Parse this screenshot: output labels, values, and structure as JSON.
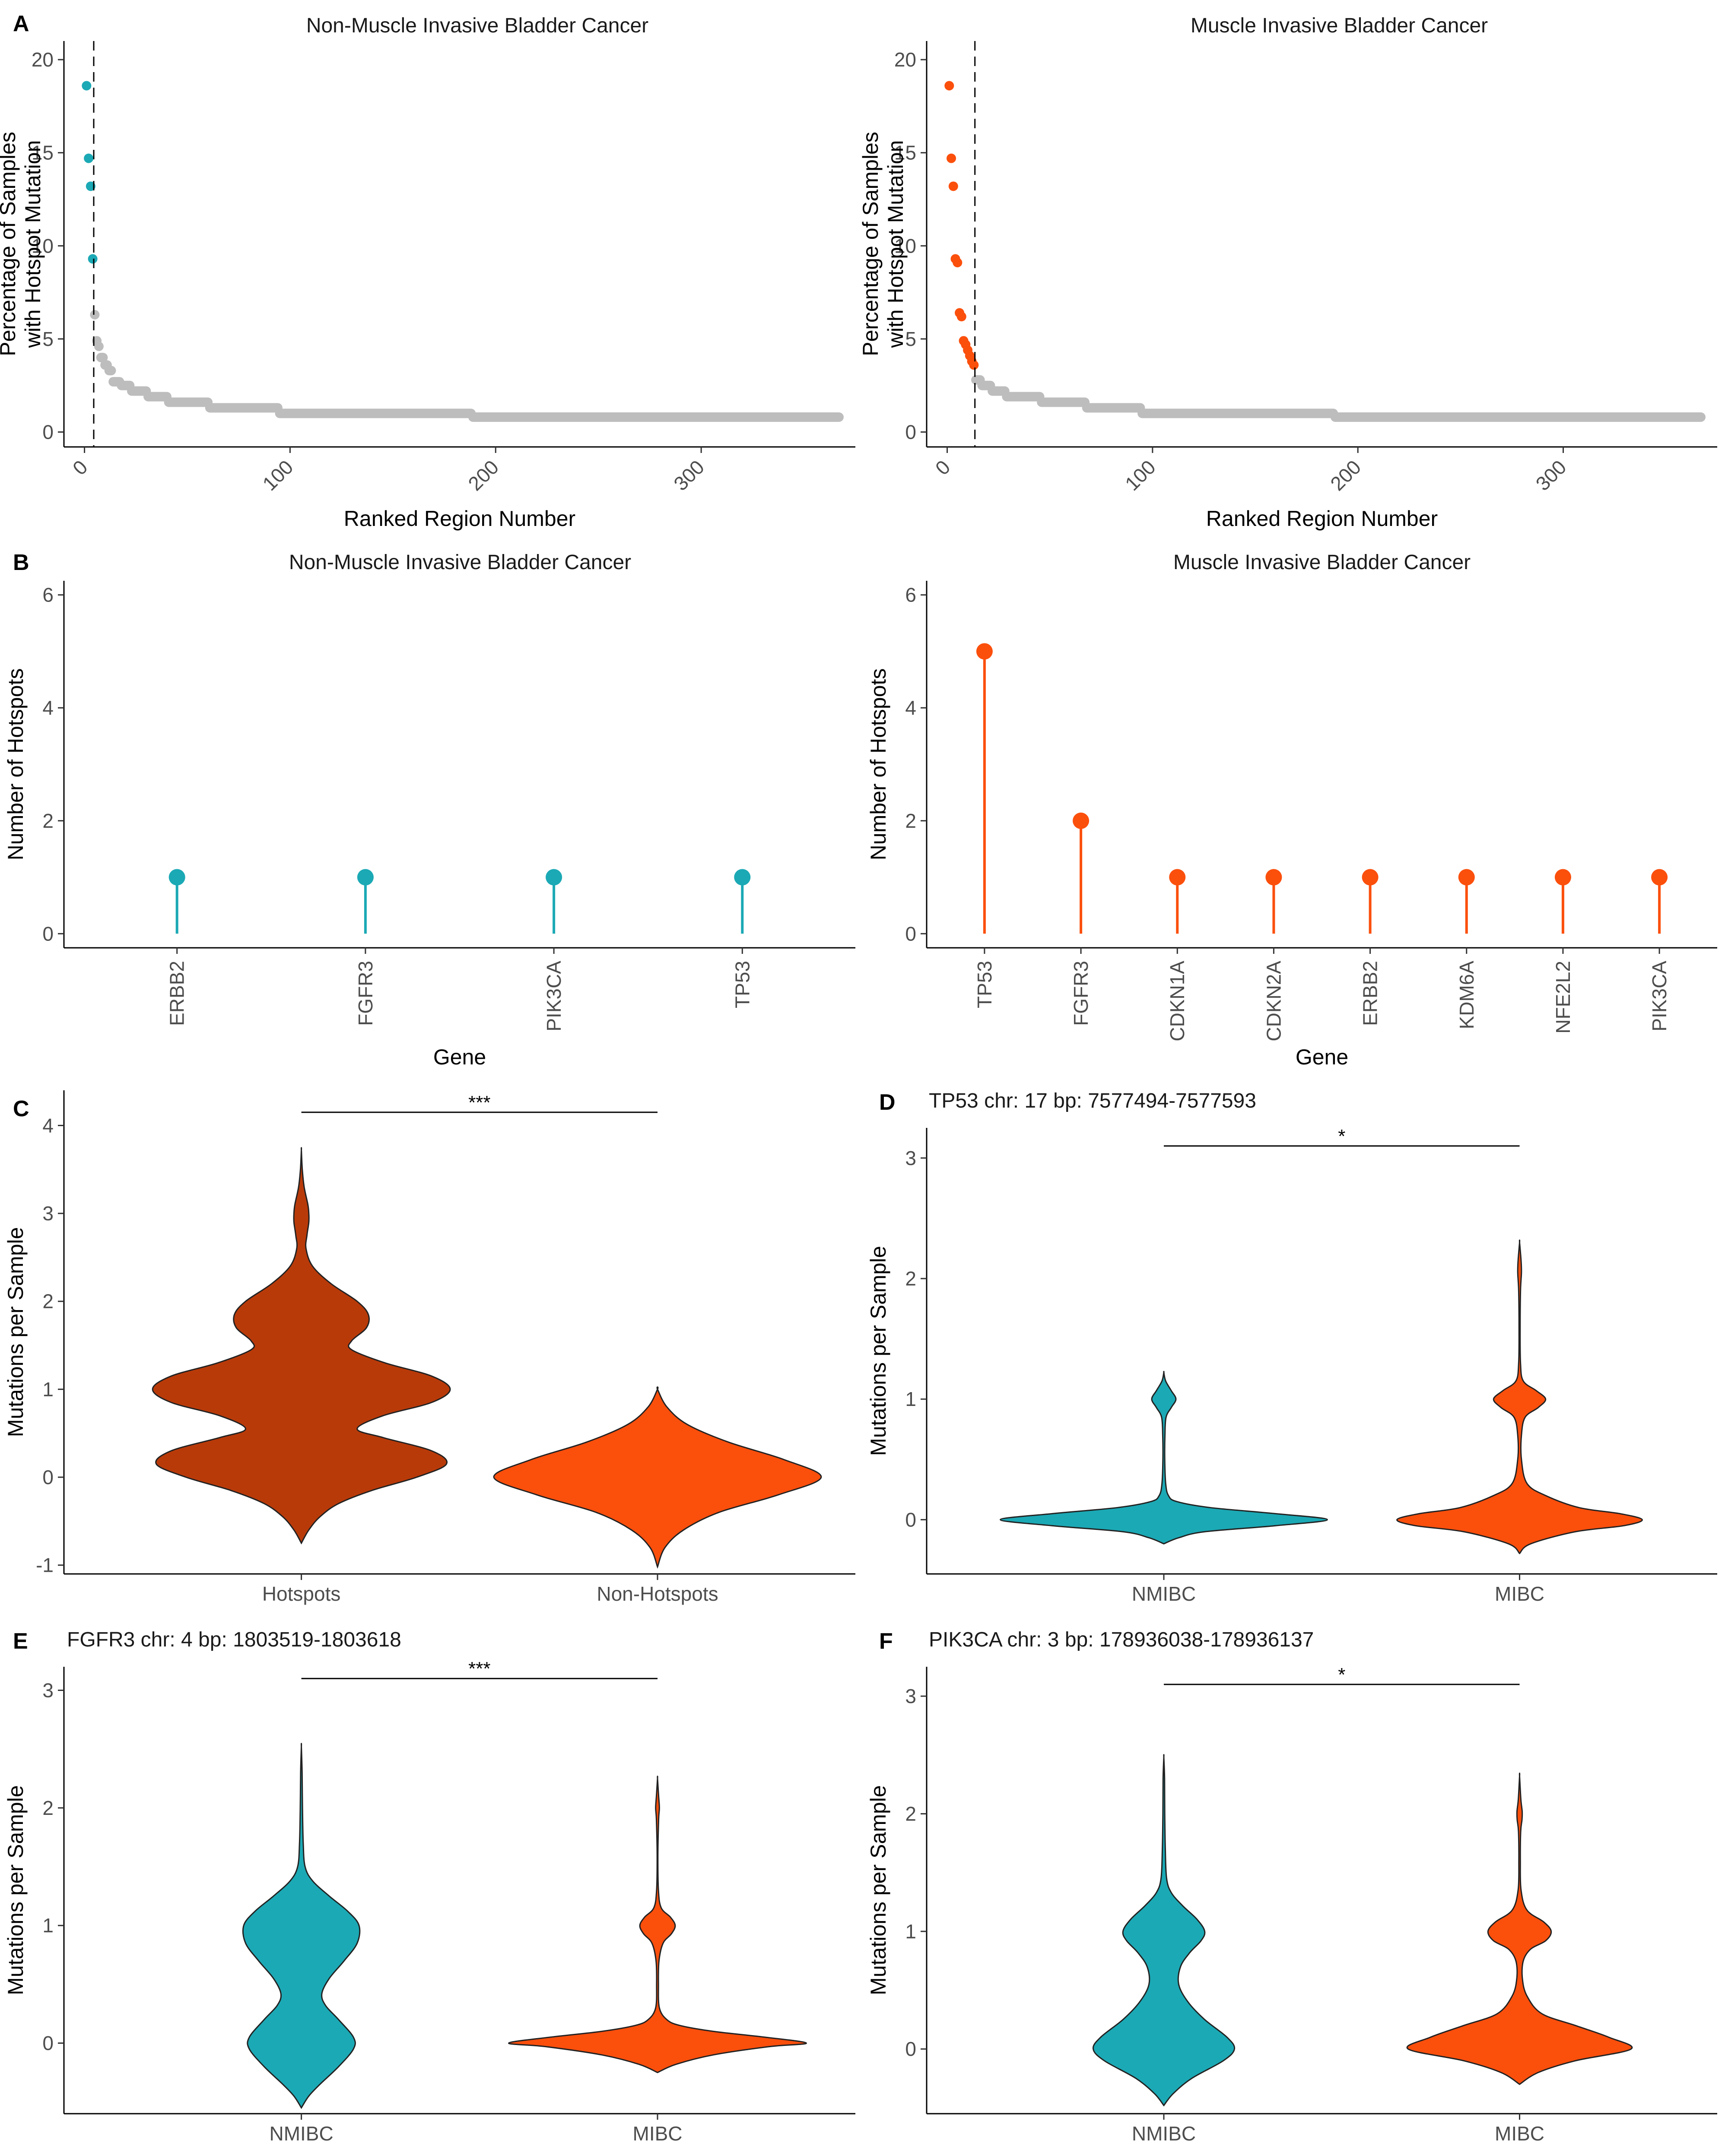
{
  "colors": {
    "nmibc": "#1BA9B5",
    "mibc": "#FB4F0C",
    "hotspots": "#B93A09",
    "grey": "#BDBDBD",
    "text": "#1a1a1a",
    "tick": "#4d4d4d"
  },
  "chart_data": [
    {
      "id": "A_left",
      "panel": "A",
      "type": "scatter",
      "title": "Non-Muscle Invasive Bladder Cancer",
      "xlabel": "Ranked Region Number",
      "ylabel": [
        "Percentage of Samples",
        "with Hotspot Mutation"
      ],
      "xlim": [
        -10,
        375
      ],
      "ylim": [
        -0.8,
        21
      ],
      "xticks": [
        0,
        100,
        200,
        300
      ],
      "yticks": [
        0,
        5,
        10,
        15,
        20
      ],
      "cutoff_x": 4.5,
      "highlight": [
        {
          "x": 1,
          "y": 18.6
        },
        {
          "x": 2,
          "y": 14.7
        },
        {
          "x": 3,
          "y": 13.2
        },
        {
          "x": 4,
          "y": 9.3
        }
      ],
      "grey_steps": [
        {
          "x0": 5,
          "x1": 5,
          "y": 6.3
        },
        {
          "x0": 6,
          "x1": 6,
          "y": 4.9
        },
        {
          "x0": 7,
          "x1": 7,
          "y": 4.6
        },
        {
          "x0": 8,
          "x1": 9,
          "y": 4.0
        },
        {
          "x0": 10,
          "x1": 11,
          "y": 3.6
        },
        {
          "x0": 12,
          "x1": 13,
          "y": 3.3
        },
        {
          "x0": 14,
          "x1": 17,
          "y": 2.7
        },
        {
          "x0": 18,
          "x1": 22,
          "y": 2.5
        },
        {
          "x0": 23,
          "x1": 30,
          "y": 2.2
        },
        {
          "x0": 31,
          "x1": 40,
          "y": 1.9
        },
        {
          "x0": 41,
          "x1": 60,
          "y": 1.6
        },
        {
          "x0": 61,
          "x1": 94,
          "y": 1.3
        },
        {
          "x0": 95,
          "x1": 188,
          "y": 1.0
        },
        {
          "x0": 189,
          "x1": 367,
          "y": 0.8
        }
      ]
    },
    {
      "id": "A_right",
      "panel": "",
      "type": "scatter",
      "title": "Muscle Invasive Bladder Cancer",
      "xlabel": "Ranked Region Number",
      "ylabel": [
        "Percentage of Samples",
        "with Hotspot Mutation"
      ],
      "xlim": [
        -10,
        375
      ],
      "ylim": [
        -0.8,
        21
      ],
      "xticks": [
        0,
        100,
        200,
        300
      ],
      "yticks": [
        0,
        5,
        10,
        15,
        20
      ],
      "cutoff_x": 13.5,
      "highlight": [
        {
          "x": 1,
          "y": 18.6
        },
        {
          "x": 2,
          "y": 14.7
        },
        {
          "x": 3,
          "y": 13.2
        },
        {
          "x": 4,
          "y": 9.3
        },
        {
          "x": 5,
          "y": 9.1
        },
        {
          "x": 6,
          "y": 6.4
        },
        {
          "x": 7,
          "y": 6.2
        },
        {
          "x": 8,
          "y": 4.9
        },
        {
          "x": 9,
          "y": 4.7
        },
        {
          "x": 10,
          "y": 4.4
        },
        {
          "x": 11,
          "y": 4.1
        },
        {
          "x": 12,
          "y": 3.8
        },
        {
          "x": 13,
          "y": 3.6
        }
      ],
      "grey_steps": [
        {
          "x0": 14,
          "x1": 16,
          "y": 2.8
        },
        {
          "x0": 17,
          "x1": 21,
          "y": 2.5
        },
        {
          "x0": 22,
          "x1": 28,
          "y": 2.2
        },
        {
          "x0": 29,
          "x1": 45,
          "y": 1.9
        },
        {
          "x0": 46,
          "x1": 67,
          "y": 1.6
        },
        {
          "x0": 68,
          "x1": 94,
          "y": 1.3
        },
        {
          "x0": 95,
          "x1": 188,
          "y": 1.0
        },
        {
          "x0": 189,
          "x1": 367,
          "y": 0.8
        }
      ]
    },
    {
      "id": "B_left",
      "panel": "B",
      "type": "lollipop",
      "title": "Non-Muscle Invasive Bladder Cancer",
      "xlabel": "Gene",
      "ylabel": [
        "Number of Hotspots"
      ],
      "ylim": [
        -0.25,
        6.25
      ],
      "yticks": [
        0,
        2,
        4,
        6
      ],
      "categories": [
        "ERBB2",
        "FGFR3",
        "PIK3CA",
        "TP53"
      ],
      "values": [
        1,
        1,
        1,
        1
      ]
    },
    {
      "id": "B_right",
      "panel": "",
      "type": "lollipop",
      "title": "Muscle Invasive Bladder Cancer",
      "xlabel": "Gene",
      "ylabel": [
        "Number of Hotspots"
      ],
      "ylim": [
        -0.25,
        6.25
      ],
      "yticks": [
        0,
        2,
        4,
        6
      ],
      "categories": [
        "TP53",
        "FGFR3",
        "CDKN1A",
        "CDKN2A",
        "ERBB2",
        "KDM6A",
        "NFE2L2",
        "PIK3CA"
      ],
      "values": [
        5,
        2,
        1,
        1,
        1,
        1,
        1,
        1
      ]
    },
    {
      "id": "C",
      "panel": "C",
      "type": "violin",
      "title": "",
      "xlabel": "",
      "ylabel": [
        "Mutations per Sample"
      ],
      "ylim": [
        -1.1,
        4.4
      ],
      "yticks": [
        -1,
        0,
        1,
        2,
        3,
        4
      ],
      "significance": "***",
      "sig_y": 4.15,
      "categories": [
        "Hotspots",
        "Non-Hotspots"
      ],
      "violins": [
        {
          "name": "Hotspots",
          "color": "hotspots",
          "profile": [
            [
              -0.75,
              0.0
            ],
            [
              -0.6,
              0.04
            ],
            [
              -0.45,
              0.1
            ],
            [
              -0.3,
              0.2
            ],
            [
              -0.15,
              0.38
            ],
            [
              0.0,
              0.62
            ],
            [
              0.15,
              0.78
            ],
            [
              0.3,
              0.7
            ],
            [
              0.45,
              0.44
            ],
            [
              0.55,
              0.3
            ],
            [
              0.7,
              0.44
            ],
            [
              0.85,
              0.7
            ],
            [
              1.0,
              0.8
            ],
            [
              1.15,
              0.7
            ],
            [
              1.3,
              0.45
            ],
            [
              1.45,
              0.27
            ],
            [
              1.55,
              0.27
            ],
            [
              1.7,
              0.35
            ],
            [
              1.85,
              0.36
            ],
            [
              2.0,
              0.3
            ],
            [
              2.2,
              0.16
            ],
            [
              2.4,
              0.06
            ],
            [
              2.6,
              0.025
            ],
            [
              2.75,
              0.03
            ],
            [
              2.9,
              0.04
            ],
            [
              3.0,
              0.04
            ],
            [
              3.1,
              0.035
            ],
            [
              3.3,
              0.015
            ],
            [
              3.5,
              0.005
            ],
            [
              3.72,
              0.0
            ]
          ]
        },
        {
          "name": "Non-Hotspots",
          "color": "mibc",
          "profile": [
            [
              -1.02,
              0.0
            ],
            [
              -0.8,
              0.04
            ],
            [
              -0.6,
              0.14
            ],
            [
              -0.4,
              0.33
            ],
            [
              -0.2,
              0.65
            ],
            [
              0.0,
              0.88
            ],
            [
              0.2,
              0.68
            ],
            [
              0.4,
              0.38
            ],
            [
              0.6,
              0.16
            ],
            [
              0.8,
              0.05
            ],
            [
              1.0,
              0.0
            ]
          ]
        }
      ]
    },
    {
      "id": "D",
      "panel": "D",
      "type": "violin",
      "title": "TP53 chr: 17 bp: 7577494-7577593",
      "xlabel": "",
      "ylabel": [
        "Mutations per Sample"
      ],
      "ylim": [
        -0.45,
        3.25
      ],
      "yticks": [
        0,
        1,
        2,
        3
      ],
      "significance": "*",
      "sig_y": 3.1,
      "categories": [
        "NMIBC",
        "MIBC"
      ],
      "violins": [
        {
          "name": "NMIBC",
          "color": "nmibc",
          "profile": [
            [
              -0.2,
              0.0
            ],
            [
              -0.15,
              0.08
            ],
            [
              -0.1,
              0.22
            ],
            [
              -0.05,
              0.6
            ],
            [
              0.0,
              0.88
            ],
            [
              0.05,
              0.6
            ],
            [
              0.1,
              0.25
            ],
            [
              0.15,
              0.07
            ],
            [
              0.2,
              0.025
            ],
            [
              0.3,
              0.01
            ],
            [
              0.5,
              0.005
            ],
            [
              0.7,
              0.006
            ],
            [
              0.85,
              0.012
            ],
            [
              0.93,
              0.04
            ],
            [
              1.0,
              0.065
            ],
            [
              1.07,
              0.04
            ],
            [
              1.15,
              0.01
            ],
            [
              1.22,
              0.0
            ]
          ]
        },
        {
          "name": "MIBC",
          "color": "mibc",
          "profile": [
            [
              -0.28,
              0.0
            ],
            [
              -0.2,
              0.06
            ],
            [
              -0.1,
              0.3
            ],
            [
              -0.05,
              0.56
            ],
            [
              0.0,
              0.66
            ],
            [
              0.05,
              0.54
            ],
            [
              0.1,
              0.32
            ],
            [
              0.2,
              0.14
            ],
            [
              0.3,
              0.04
            ],
            [
              0.5,
              0.01
            ],
            [
              0.7,
              0.01
            ],
            [
              0.85,
              0.03
            ],
            [
              0.93,
              0.1
            ],
            [
              1.0,
              0.14
            ],
            [
              1.07,
              0.09
            ],
            [
              1.15,
              0.02
            ],
            [
              1.3,
              0.005
            ],
            [
              1.6,
              0.003
            ],
            [
              1.9,
              0.005
            ],
            [
              2.05,
              0.01
            ],
            [
              2.15,
              0.008
            ],
            [
              2.3,
              0.0
            ]
          ]
        }
      ]
    },
    {
      "id": "E",
      "panel": "E",
      "type": "violin",
      "title": "FGFR3 chr: 4 bp: 1803519-1803618",
      "xlabel": "",
      "ylabel": [
        "Mutations per Sample"
      ],
      "ylim": [
        -0.6,
        3.2
      ],
      "yticks": [
        0,
        1,
        2,
        3
      ],
      "significance": "***",
      "sig_y": 3.1,
      "categories": [
        "NMIBC",
        "MIBC"
      ],
      "violins": [
        {
          "name": "NMIBC",
          "color": "nmibc",
          "profile": [
            [
              -0.55,
              0.0
            ],
            [
              -0.45,
              0.04
            ],
            [
              -0.35,
              0.1
            ],
            [
              -0.2,
              0.2
            ],
            [
              -0.05,
              0.28
            ],
            [
              0.05,
              0.28
            ],
            [
              0.2,
              0.2
            ],
            [
              0.32,
              0.13
            ],
            [
              0.42,
              0.11
            ],
            [
              0.55,
              0.15
            ],
            [
              0.7,
              0.23
            ],
            [
              0.85,
              0.3
            ],
            [
              1.0,
              0.31
            ],
            [
              1.12,
              0.25
            ],
            [
              1.25,
              0.15
            ],
            [
              1.38,
              0.06
            ],
            [
              1.5,
              0.02
            ],
            [
              1.7,
              0.01
            ],
            [
              2.0,
              0.006
            ],
            [
              2.3,
              0.004
            ],
            [
              2.52,
              0.0
            ]
          ]
        },
        {
          "name": "MIBC",
          "color": "mibc",
          "profile": [
            [
              -0.25,
              0.0
            ],
            [
              -0.18,
              0.1
            ],
            [
              -0.1,
              0.3
            ],
            [
              -0.03,
              0.6
            ],
            [
              0.0,
              0.8
            ],
            [
              0.05,
              0.58
            ],
            [
              0.1,
              0.3
            ],
            [
              0.15,
              0.12
            ],
            [
              0.2,
              0.05
            ],
            [
              0.3,
              0.01
            ],
            [
              0.5,
              0.005
            ],
            [
              0.7,
              0.008
            ],
            [
              0.85,
              0.03
            ],
            [
              0.93,
              0.075
            ],
            [
              1.0,
              0.095
            ],
            [
              1.07,
              0.07
            ],
            [
              1.15,
              0.02
            ],
            [
              1.3,
              0.005
            ],
            [
              1.6,
              0.002
            ],
            [
              1.9,
              0.006
            ],
            [
              2.0,
              0.01
            ],
            [
              2.1,
              0.006
            ],
            [
              2.25,
              0.0
            ]
          ]
        }
      ]
    },
    {
      "id": "F",
      "panel": "F",
      "type": "violin",
      "title": "PIK3CA chr: 3 bp: 178936038-178936137",
      "xlabel": "",
      "ylabel": [
        "Mutations per Sample"
      ],
      "ylim": [
        -0.55,
        3.25
      ],
      "yticks": [
        0,
        1,
        2,
        3
      ],
      "significance": "*",
      "sig_y": 3.1,
      "categories": [
        "NMIBC",
        "MIBC"
      ],
      "violins": [
        {
          "name": "NMIBC",
          "color": "nmibc",
          "profile": [
            [
              -0.48,
              0.0
            ],
            [
              -0.38,
              0.05
            ],
            [
              -0.25,
              0.15
            ],
            [
              -0.1,
              0.32
            ],
            [
              0.0,
              0.38
            ],
            [
              0.1,
              0.34
            ],
            [
              0.25,
              0.22
            ],
            [
              0.4,
              0.13
            ],
            [
              0.55,
              0.08
            ],
            [
              0.7,
              0.09
            ],
            [
              0.82,
              0.14
            ],
            [
              0.92,
              0.2
            ],
            [
              1.0,
              0.22
            ],
            [
              1.1,
              0.18
            ],
            [
              1.22,
              0.1
            ],
            [
              1.33,
              0.04
            ],
            [
              1.45,
              0.015
            ],
            [
              1.7,
              0.008
            ],
            [
              2.0,
              0.005
            ],
            [
              2.3,
              0.004
            ],
            [
              2.48,
              0.0
            ]
          ]
        },
        {
          "name": "MIBC",
          "color": "mibc",
          "profile": [
            [
              -0.3,
              0.0
            ],
            [
              -0.2,
              0.1
            ],
            [
              -0.1,
              0.3
            ],
            [
              0.0,
              0.6
            ],
            [
              0.1,
              0.48
            ],
            [
              0.2,
              0.3
            ],
            [
              0.3,
              0.12
            ],
            [
              0.45,
              0.04
            ],
            [
              0.6,
              0.015
            ],
            [
              0.75,
              0.02
            ],
            [
              0.85,
              0.06
            ],
            [
              0.92,
              0.14
            ],
            [
              1.0,
              0.17
            ],
            [
              1.08,
              0.13
            ],
            [
              1.18,
              0.04
            ],
            [
              1.35,
              0.008
            ],
            [
              1.6,
              0.004
            ],
            [
              1.85,
              0.006
            ],
            [
              1.95,
              0.013
            ],
            [
              2.02,
              0.014
            ],
            [
              2.12,
              0.007
            ],
            [
              2.32,
              0.0
            ]
          ]
        }
      ]
    }
  ]
}
